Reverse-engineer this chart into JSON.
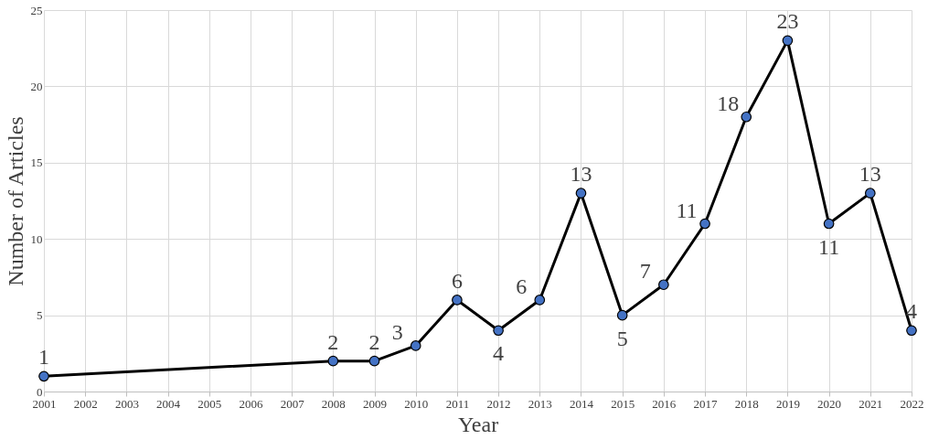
{
  "chart_data": {
    "type": "line",
    "xlabel": "Year",
    "ylabel": "Number of Articles",
    "x": [
      2001,
      2008,
      2009,
      2010,
      2011,
      2012,
      2013,
      2014,
      2015,
      2016,
      2017,
      2018,
      2019,
      2020,
      2021,
      2022
    ],
    "series": [
      {
        "color": "#000000",
        "colors": [
          "#4472c4",
          "#4472c4",
          "#4472c4",
          "#4472c4",
          "#4472c4",
          "#4472c4",
          "#4472c4",
          "#4472c4",
          "#4472c4",
          "#4472c4",
          "#4472c4",
          "#4472c4",
          "#4472c4",
          "#4472c4",
          "#4472c4",
          "#4472c4"
        ],
        "values": [
          1,
          2,
          2,
          3,
          6,
          4,
          6,
          13,
          5,
          7,
          11,
          18,
          23,
          11,
          13,
          4
        ]
      }
    ],
    "xlim": [
      2001,
      2022
    ],
    "xticks": [
      2001,
      2002,
      2003,
      2004,
      2005,
      2006,
      2007,
      2008,
      2009,
      2010,
      2011,
      2012,
      2013,
      2014,
      2015,
      2016,
      2017,
      2018,
      2019,
      2020,
      2021,
      2022
    ],
    "ylim": [
      0,
      25
    ],
    "yticks": [
      0,
      5,
      10,
      15,
      20,
      25
    ],
    "grid": true,
    "marker": "circle",
    "line_style": "solid",
    "data_labels": true
  }
}
